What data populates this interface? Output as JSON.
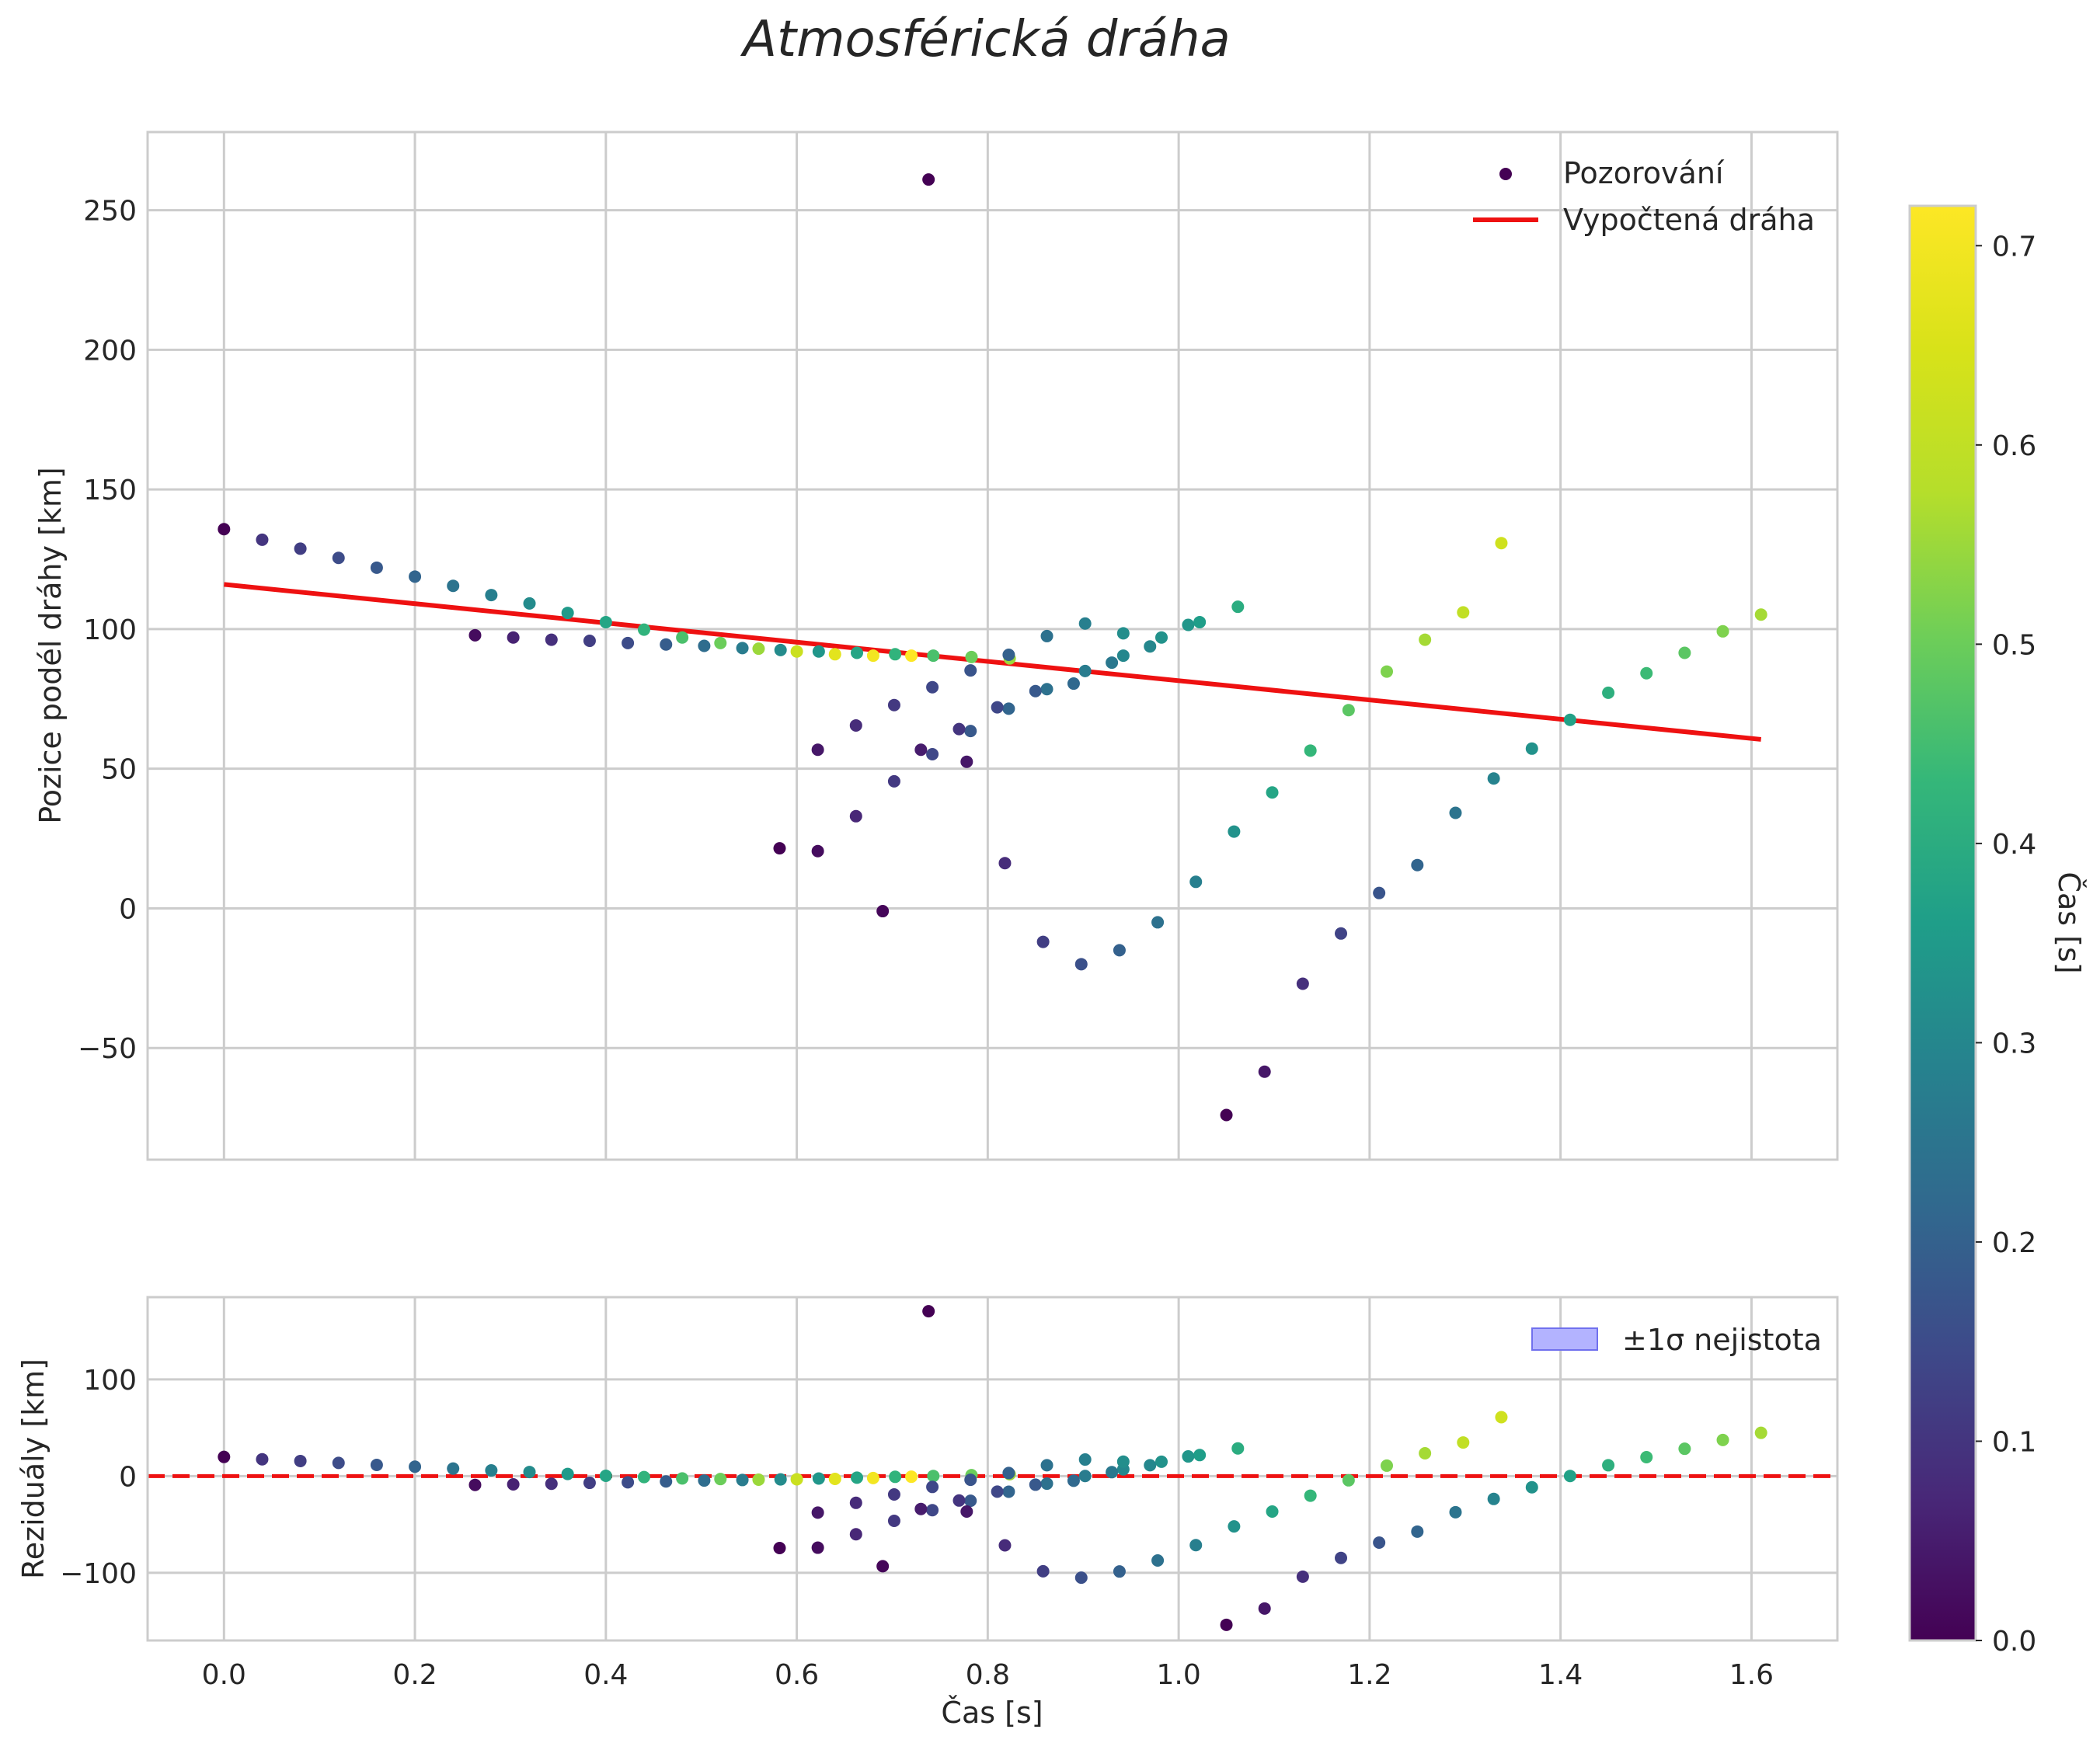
{
  "chart_data": {
    "type": "scatter",
    "title": "Atmosférická dráha",
    "colormap": "viridis",
    "colorbar": {
      "label": "Čas [s]",
      "range": [
        0.0,
        0.72
      ],
      "ticks": [
        0.0,
        0.1,
        0.2,
        0.3,
        0.4,
        0.5,
        0.6,
        0.7
      ],
      "tick_labels": [
        "0.0",
        "0.1",
        "0.2",
        "0.3",
        "0.4",
        "0.5",
        "0.6",
        "0.7"
      ]
    },
    "x_ticks": [
      0.0,
      0.2,
      0.4,
      0.6,
      0.8,
      1.0,
      1.2,
      1.4,
      1.6
    ],
    "x_tick_labels": [
      "0.0",
      "0.2",
      "0.4",
      "0.6",
      "0.8",
      "1.0",
      "1.2",
      "1.4",
      "1.6"
    ],
    "xlabel": "Čas [s]",
    "xlim": [
      -0.08,
      1.69
    ],
    "main": {
      "ylabel": "Pozice podél dráhy [km]",
      "ylim": [
        -90,
        278
      ],
      "y_ticks": [
        -50,
        0,
        50,
        100,
        150,
        200,
        250
      ],
      "y_tick_labels": [
        "−50",
        "0",
        "50",
        "100",
        "150",
        "200",
        "250"
      ],
      "legend": {
        "position": "top-right",
        "observed": "Pozorování",
        "fit": "Vypočtená dráha"
      },
      "fit_line": {
        "x": [
          0.0,
          1.61
        ],
        "y": [
          116,
          60.5
        ],
        "color": "#ee1111"
      },
      "observations": [
        {
          "x": 0.0,
          "y": 135.8,
          "c": 0.0
        },
        {
          "x": 0.04,
          "y": 132.0,
          "c": 0.1
        },
        {
          "x": 0.08,
          "y": 128.8,
          "c": 0.12
        },
        {
          "x": 0.12,
          "y": 125.5,
          "c": 0.15
        },
        {
          "x": 0.16,
          "y": 122.0,
          "c": 0.18
        },
        {
          "x": 0.2,
          "y": 118.8,
          "c": 0.21
        },
        {
          "x": 0.24,
          "y": 115.5,
          "c": 0.25
        },
        {
          "x": 0.28,
          "y": 112.2,
          "c": 0.28
        },
        {
          "x": 0.32,
          "y": 109.2,
          "c": 0.31
        },
        {
          "x": 0.36,
          "y": 105.8,
          "c": 0.35
        },
        {
          "x": 0.4,
          "y": 102.5,
          "c": 0.38
        },
        {
          "x": 0.44,
          "y": 99.8,
          "c": 0.42
        },
        {
          "x": 0.48,
          "y": 97.0,
          "c": 0.46
        },
        {
          "x": 0.52,
          "y": 95.0,
          "c": 0.5
        },
        {
          "x": 0.56,
          "y": 93.0,
          "c": 0.55
        },
        {
          "x": 0.6,
          "y": 92.0,
          "c": 0.62
        },
        {
          "x": 0.64,
          "y": 91.0,
          "c": 0.67
        },
        {
          "x": 0.68,
          "y": 90.5,
          "c": 0.7
        },
        {
          "x": 0.72,
          "y": 90.5,
          "c": 0.72
        },
        {
          "x": 0.263,
          "y": 97.8,
          "c": 0.02
        },
        {
          "x": 0.303,
          "y": 97.0,
          "c": 0.06
        },
        {
          "x": 0.343,
          "y": 96.2,
          "c": 0.09
        },
        {
          "x": 0.383,
          "y": 95.8,
          "c": 0.12
        },
        {
          "x": 0.423,
          "y": 95.0,
          "c": 0.15
        },
        {
          "x": 0.463,
          "y": 94.5,
          "c": 0.19
        },
        {
          "x": 0.503,
          "y": 94.0,
          "c": 0.23
        },
        {
          "x": 0.543,
          "y": 93.2,
          "c": 0.27
        },
        {
          "x": 0.583,
          "y": 92.5,
          "c": 0.31
        },
        {
          "x": 0.623,
          "y": 92.0,
          "c": 0.34
        },
        {
          "x": 0.663,
          "y": 91.5,
          "c": 0.38
        },
        {
          "x": 0.703,
          "y": 91.0,
          "c": 0.42
        },
        {
          "x": 0.743,
          "y": 90.5,
          "c": 0.46
        },
        {
          "x": 0.783,
          "y": 90.0,
          "c": 0.5
        },
        {
          "x": 0.823,
          "y": 89.5,
          "c": 0.55
        },
        {
          "x": 0.582,
          "y": 21.5,
          "c": 0.0
        },
        {
          "x": 0.622,
          "y": 20.5,
          "c": 0.02
        },
        {
          "x": 0.662,
          "y": 33.0,
          "c": 0.07
        },
        {
          "x": 0.702,
          "y": 45.5,
          "c": 0.11
        },
        {
          "x": 0.742,
          "y": 55.2,
          "c": 0.14
        },
        {
          "x": 0.782,
          "y": 63.5,
          "c": 0.18
        },
        {
          "x": 0.822,
          "y": 71.5,
          "c": 0.21
        },
        {
          "x": 0.862,
          "y": 78.5,
          "c": 0.24
        },
        {
          "x": 0.902,
          "y": 85.0,
          "c": 0.27
        },
        {
          "x": 0.942,
          "y": 90.5,
          "c": 0.3
        },
        {
          "x": 0.982,
          "y": 97.0,
          "c": 0.33
        },
        {
          "x": 1.022,
          "y": 102.5,
          "c": 0.36
        },
        {
          "x": 1.062,
          "y": 108.0,
          "c": 0.4
        },
        {
          "x": 0.622,
          "y": 56.8,
          "c": 0.04
        },
        {
          "x": 0.662,
          "y": 65.5,
          "c": 0.08
        },
        {
          "x": 0.702,
          "y": 72.8,
          "c": 0.11
        },
        {
          "x": 0.742,
          "y": 79.2,
          "c": 0.14
        },
        {
          "x": 0.782,
          "y": 85.2,
          "c": 0.17
        },
        {
          "x": 0.822,
          "y": 90.8,
          "c": 0.2
        },
        {
          "x": 0.862,
          "y": 97.5,
          "c": 0.24
        },
        {
          "x": 0.902,
          "y": 102.0,
          "c": 0.28
        },
        {
          "x": 0.942,
          "y": 98.5,
          "c": 0.32
        },
        {
          "x": 0.69,
          "y": -1.0,
          "c": 0.01
        },
        {
          "x": 0.73,
          "y": 56.8,
          "c": 0.05
        },
        {
          "x": 0.77,
          "y": 64.2,
          "c": 0.1
        },
        {
          "x": 0.81,
          "y": 72.0,
          "c": 0.14
        },
        {
          "x": 0.85,
          "y": 77.8,
          "c": 0.18
        },
        {
          "x": 0.89,
          "y": 80.5,
          "c": 0.22
        },
        {
          "x": 0.93,
          "y": 88.0,
          "c": 0.26
        },
        {
          "x": 0.97,
          "y": 93.8,
          "c": 0.3
        },
        {
          "x": 1.01,
          "y": 101.5,
          "c": 0.34
        },
        {
          "x": 0.738,
          "y": 261.0,
          "c": 0.0
        },
        {
          "x": 0.778,
          "y": 52.5,
          "c": 0.04
        },
        {
          "x": 0.818,
          "y": 16.2,
          "c": 0.08
        },
        {
          "x": 0.858,
          "y": -12.0,
          "c": 0.12
        },
        {
          "x": 0.898,
          "y": -20.0,
          "c": 0.16
        },
        {
          "x": 0.938,
          "y": -15.0,
          "c": 0.2
        },
        {
          "x": 0.978,
          "y": -5.0,
          "c": 0.24
        },
        {
          "x": 1.018,
          "y": 9.5,
          "c": 0.28
        },
        {
          "x": 1.058,
          "y": 27.5,
          "c": 0.33
        },
        {
          "x": 1.098,
          "y": 41.5,
          "c": 0.38
        },
        {
          "x": 1.138,
          "y": 56.5,
          "c": 0.43
        },
        {
          "x": 1.178,
          "y": 71.0,
          "c": 0.48
        },
        {
          "x": 1.218,
          "y": 84.8,
          "c": 0.52
        },
        {
          "x": 1.258,
          "y": 96.2,
          "c": 0.56
        },
        {
          "x": 1.298,
          "y": 106.0,
          "c": 0.6
        },
        {
          "x": 1.338,
          "y": 130.8,
          "c": 0.63
        },
        {
          "x": 1.05,
          "y": -74.0,
          "c": 0.0
        },
        {
          "x": 1.09,
          "y": -58.5,
          "c": 0.04
        },
        {
          "x": 1.13,
          "y": -27.0,
          "c": 0.09
        },
        {
          "x": 1.17,
          "y": -9.0,
          "c": 0.13
        },
        {
          "x": 1.21,
          "y": 5.5,
          "c": 0.17
        },
        {
          "x": 1.25,
          "y": 15.5,
          "c": 0.21
        },
        {
          "x": 1.29,
          "y": 34.2,
          "c": 0.25
        },
        {
          "x": 1.33,
          "y": 46.5,
          "c": 0.29
        },
        {
          "x": 1.37,
          "y": 57.2,
          "c": 0.33
        },
        {
          "x": 1.41,
          "y": 67.5,
          "c": 0.37
        },
        {
          "x": 1.45,
          "y": 77.2,
          "c": 0.41
        },
        {
          "x": 1.49,
          "y": 84.2,
          "c": 0.44
        },
        {
          "x": 1.53,
          "y": 91.5,
          "c": 0.48
        },
        {
          "x": 1.57,
          "y": 99.2,
          "c": 0.52
        },
        {
          "x": 1.61,
          "y": 105.2,
          "c": 0.56
        }
      ]
    },
    "residuals": {
      "ylabel": "Reziduály [km]",
      "ylim": [
        -170,
        185
      ],
      "y_ticks": [
        -100,
        0,
        100
      ],
      "y_tick_labels": [
        "−100",
        "0",
        "100"
      ],
      "zero_line": {
        "y": 0,
        "color": "#ee1111",
        "style": "dashed"
      },
      "legend": {
        "position": "top-right",
        "band": "±1σ nejistota"
      }
    }
  }
}
